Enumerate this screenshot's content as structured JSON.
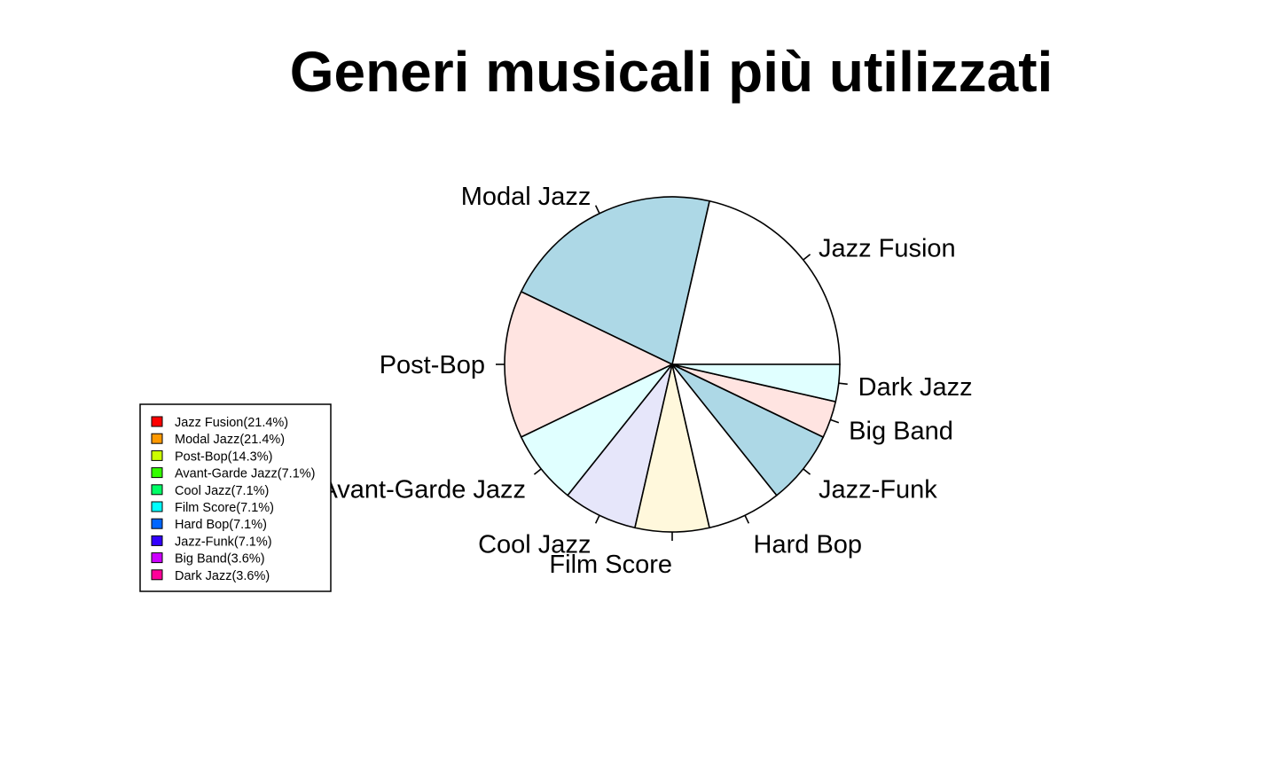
{
  "chart_data": {
    "type": "pie",
    "title": "Generi musicali più utilizzati",
    "start_angle_deg": 0,
    "direction": "counterclockwise",
    "slices": [
      {
        "label": "Jazz Fusion",
        "value": 6,
        "fill": "#ffffff",
        "legend_label": "Jazz Fusion(21.4%)",
        "legend_color": "#ff0000"
      },
      {
        "label": "Modal Jazz",
        "value": 6,
        "fill": "#add8e6",
        "legend_label": "Modal Jazz(21.4%)",
        "legend_color": "#ff9900"
      },
      {
        "label": "Post-Bop",
        "value": 4,
        "fill": "#ffe4e1",
        "legend_label": "Post-Bop(14.3%)",
        "legend_color": "#ccff00"
      },
      {
        "label": "Avant-Garde Jazz",
        "value": 2,
        "fill": "#e0ffff",
        "legend_label": "Avant-Garde Jazz(7.1%)",
        "legend_color": "#33ff00"
      },
      {
        "label": "Cool Jazz",
        "value": 2,
        "fill": "#e6e6fa",
        "legend_label": "Cool Jazz(7.1%)",
        "legend_color": "#00ff66"
      },
      {
        "label": "Film Score",
        "value": 2,
        "fill": "#fff8dc",
        "legend_label": "Film Score(7.1%)",
        "legend_color": "#00ffff"
      },
      {
        "label": "Hard Bop",
        "value": 2,
        "fill": "#ffffff",
        "legend_label": "Hard Bop(7.1%)",
        "legend_color": "#0066ff"
      },
      {
        "label": "Jazz-Funk",
        "value": 2,
        "fill": "#add8e6",
        "legend_label": "Jazz-Funk(7.1%)",
        "legend_color": "#3300ff"
      },
      {
        "label": "Big Band",
        "value": 1,
        "fill": "#ffe4e1",
        "legend_label": "Big Band(3.6%)",
        "legend_color": "#cc00ff"
      },
      {
        "label": "Dark Jazz",
        "value": 1,
        "fill": "#e0ffff",
        "legend_label": "Dark Jazz(3.6%)",
        "legend_color": "#ff0099"
      }
    ],
    "legend_position": "bottom-left"
  }
}
